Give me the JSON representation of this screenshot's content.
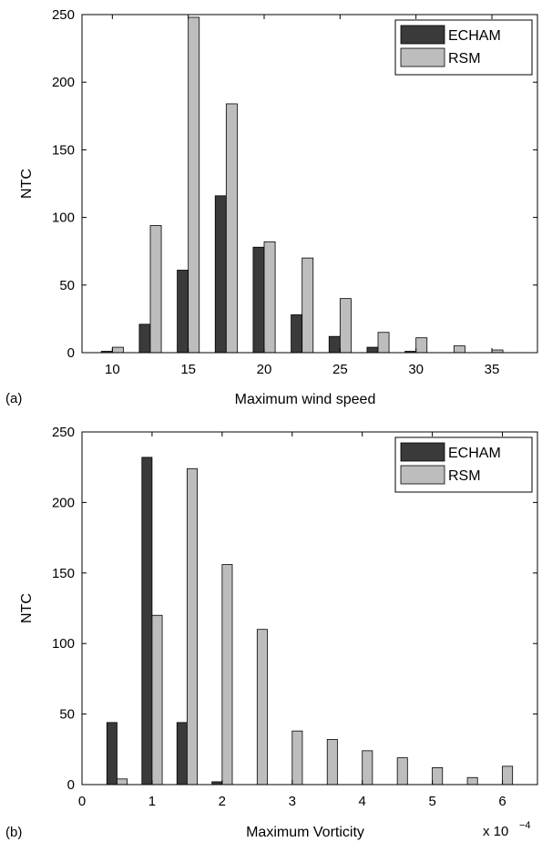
{
  "chart_data": [
    {
      "type": "bar",
      "panel_label": "(a)",
      "xlabel": "Maximum wind speed",
      "ylabel": "NTC",
      "x_exponent": "",
      "xlim": [
        8,
        38
      ],
      "ylim": [
        0,
        250
      ],
      "xticks": [
        10,
        15,
        20,
        25,
        30,
        35
      ],
      "yticks": [
        0,
        50,
        100,
        150,
        200,
        250
      ],
      "bin_width": 2.5,
      "x": [
        10,
        12.5,
        15,
        17.5,
        20,
        22.5,
        25,
        27.5,
        30,
        32.5,
        35
      ],
      "series": [
        {
          "name": "ECHAM",
          "color": "#3a3a3a",
          "values": [
            1,
            21,
            61,
            116,
            78,
            28,
            12,
            4,
            1,
            0,
            0
          ]
        },
        {
          "name": "RSM",
          "color": "#bdbdbd",
          "values": [
            4,
            94,
            248,
            184,
            82,
            70,
            40,
            15,
            11,
            5,
            2
          ]
        }
      ],
      "legend": "top-right",
      "grid": false
    },
    {
      "type": "bar",
      "panel_label": "(b)",
      "xlabel": "Maximum Vorticity",
      "ylabel": "NTC",
      "x_exponent": "x 10",
      "x_exponent_power": "−4",
      "xlim": [
        0,
        6.5
      ],
      "ylim": [
        0,
        250
      ],
      "xticks": [
        0,
        1,
        2,
        3,
        4,
        5,
        6
      ],
      "yticks": [
        0,
        50,
        100,
        150,
        200,
        250
      ],
      "bin_width": 0.5,
      "x": [
        0.5,
        1,
        1.5,
        2,
        2.5,
        3,
        3.5,
        4,
        4.5,
        5,
        5.5,
        6
      ],
      "series": [
        {
          "name": "ECHAM",
          "color": "#3a3a3a",
          "values": [
            44,
            232,
            44,
            2,
            0,
            0,
            0,
            0,
            0,
            0,
            0,
            0
          ]
        },
        {
          "name": "RSM",
          "color": "#bdbdbd",
          "values": [
            4,
            120,
            224,
            156,
            110,
            38,
            32,
            24,
            19,
            12,
            5,
            13
          ]
        }
      ],
      "legend": "top-right",
      "grid": false
    }
  ]
}
